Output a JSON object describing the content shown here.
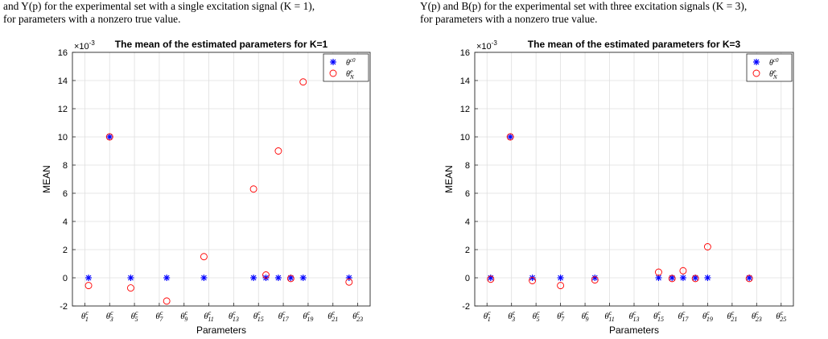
{
  "captions": {
    "left_line1": "and Y(p) for the experimental set with a single excitation signal (K = 1),",
    "left_line2": "for parameters with a nonzero true value.",
    "right_line1": "Y(p) and B(p) for the experimental set with three excitation signals (K = 3),",
    "right_line2": "for parameters with a nonzero true value."
  },
  "colors": {
    "true_marker": "#0000ff",
    "est_marker": "#ff0000",
    "grid": "#dfdfdf",
    "axis": "#262626"
  },
  "chart_data": [
    {
      "type": "scatter",
      "title": "The mean of the estimated parameters for K=1",
      "xlabel": "Parameters",
      "ylabel": "MEAN",
      "y_exponent": "×10^{-3}",
      "xlim": [
        0,
        24
      ],
      "ylim": [
        -2,
        16
      ],
      "yticks": [
        -2,
        0,
        2,
        4,
        6,
        8,
        10,
        12,
        14,
        16
      ],
      "xtick_positions": [
        1,
        3,
        5,
        7,
        9,
        11,
        13,
        15,
        17,
        19,
        21,
        23
      ],
      "xtick_labels": [
        "θ1c",
        "θ3c",
        "θ5c",
        "θ7c",
        "θ9c",
        "θ11c",
        "θ13c",
        "θ15c",
        "θ17c",
        "θ19c",
        "θ21c",
        "θ23c"
      ],
      "grid": true,
      "legend_position": "top-right",
      "series": [
        {
          "name": "θ^{c0}",
          "marker": "asterisk",
          "x": [
            1.3,
            3.0,
            4.7,
            7.6,
            10.6,
            14.6,
            15.6,
            16.6,
            17.6,
            18.6,
            22.3
          ],
          "y": [
            0,
            10,
            0,
            0,
            0,
            0,
            0,
            0,
            0,
            0,
            0
          ]
        },
        {
          "name": "θ̂^{c}_N",
          "marker": "circle",
          "x": [
            1.3,
            3.0,
            4.7,
            7.6,
            10.6,
            14.6,
            15.6,
            16.6,
            17.6,
            18.6,
            22.3
          ],
          "y": [
            -0.55,
            10,
            -0.72,
            -1.65,
            1.5,
            6.3,
            0.2,
            9.0,
            -0.05,
            13.9,
            -0.3
          ]
        }
      ]
    },
    {
      "type": "scatter",
      "title": "The mean of the estimated parameters for K=3",
      "xlabel": "Parameters",
      "ylabel": "MEAN",
      "y_exponent": "×10^{-3}",
      "xlim": [
        0,
        26
      ],
      "ylim": [
        -2,
        16
      ],
      "yticks": [
        -2,
        0,
        2,
        4,
        6,
        8,
        10,
        12,
        14,
        16
      ],
      "xtick_positions": [
        1,
        3,
        5,
        7,
        9,
        11,
        13,
        15,
        17,
        19,
        21,
        23,
        25
      ],
      "xtick_labels": [
        "θ1c",
        "θ3c",
        "θ5c",
        "θ7c",
        "θ9c",
        "θ11c",
        "θ13c",
        "θ15c",
        "θ17c",
        "θ19c",
        "θ21c",
        "θ23c",
        "θ25c"
      ],
      "grid": true,
      "legend_position": "top-right",
      "series": [
        {
          "name": "θ^{c0}",
          "marker": "asterisk",
          "x": [
            1.3,
            2.9,
            4.7,
            7.0,
            9.8,
            15.0,
            16.1,
            17.0,
            18.0,
            19.0,
            22.4
          ],
          "y": [
            0,
            10,
            0,
            0,
            0,
            0,
            0,
            0,
            0,
            0,
            0
          ]
        },
        {
          "name": "θ̂^{c}_N",
          "marker": "circle",
          "x": [
            1.3,
            2.9,
            4.7,
            7.0,
            9.8,
            15.0,
            16.1,
            17.0,
            18.0,
            19.0,
            22.4
          ],
          "y": [
            -0.1,
            10,
            -0.2,
            -0.55,
            -0.15,
            0.4,
            -0.05,
            0.5,
            -0.05,
            2.2,
            -0.05
          ]
        }
      ]
    }
  ]
}
